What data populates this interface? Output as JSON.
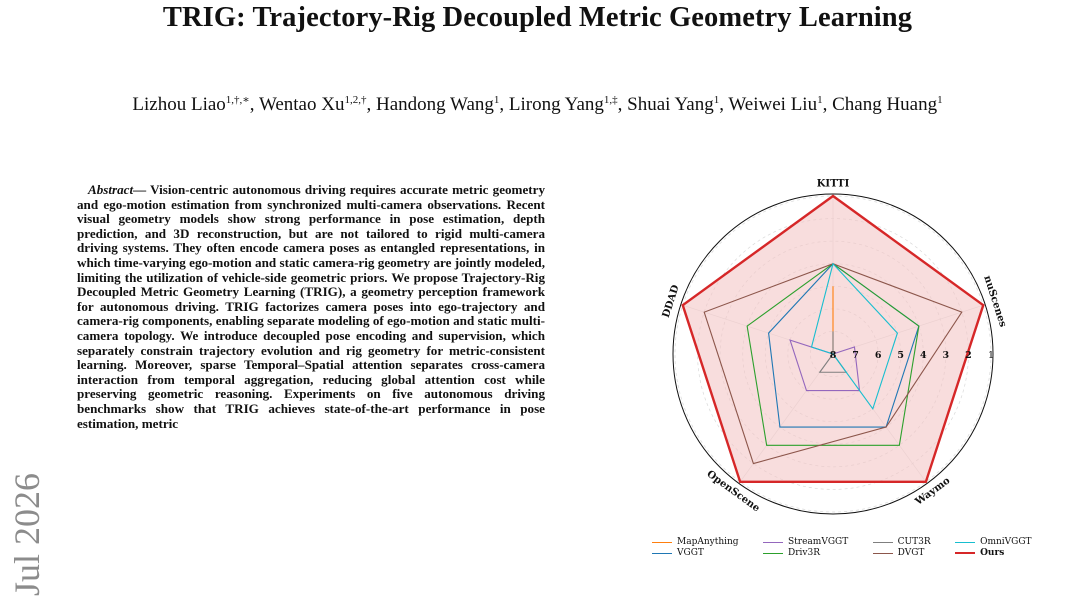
{
  "paper": {
    "title": "TRIG: Trajectory-Rig Decoupled Metric Geometry Learning",
    "authors": [
      {
        "name": "Lizhou Liao",
        "sup": "1,†,∗",
        "sep": ", "
      },
      {
        "name": "Wentao Xu",
        "sup": "1,2,†",
        "sep": ", "
      },
      {
        "name": "Handong Wang",
        "sup": "1",
        "sep": ", "
      },
      {
        "name": "Lirong Yang",
        "sup": "1,‡",
        "sep": ", "
      },
      {
        "name": "Shuai Yang",
        "sup": "1",
        "sep": ", "
      },
      {
        "name": "Weiwei Liu",
        "sup": "1",
        "sep": ", "
      },
      {
        "name": "Chang Huang",
        "sup": "1",
        "sep": ""
      }
    ],
    "side_stamp": "Jul 2026",
    "abstract_label": "Abstract—",
    "abstract_text": "Vision-centric autonomous driving requires accurate metric geometry and ego-motion estimation from synchronized multi-camera observations. Recent visual geometry models show strong performance in pose estimation, depth prediction, and 3D reconstruction, but are not tailored to rigid multi-camera driving systems. They often encode camera poses as entangled representations, in which time-varying ego-motion and static camera-rig geometry are jointly modeled, limiting the utilization of vehicle-side geometric priors. We propose Trajectory-Rig Decoupled Metric Geometry Learning (TRIG), a geometry perception framework for autonomous driving. TRIG factorizes camera poses into ego-trajectory and camera-rig components, enabling separate modeling of ego-motion and static multi-camera topology. We introduce decoupled pose encoding and supervision, which separately constrain trajectory evolution and rig geometry for metric-consistent learning. Moreover, sparse Temporal–Spatial attention separates cross-camera interaction from temporal aggregation, reducing global attention cost while preserving geometric reasoning. Experiments on five autonomous driving benchmarks show that TRIG achieves state-of-the-art performance in pose estimation, metric"
  },
  "chart_data": {
    "type": "radar",
    "axes": [
      "KITTI",
      "nuScenes",
      "Waymo",
      "OpenScene",
      "DDAD"
    ],
    "rank_ticks": [
      "1",
      "2",
      "3",
      "4",
      "5",
      "6",
      "7",
      "8"
    ],
    "rank_range": [
      1,
      8
    ],
    "grid": true,
    "legend_position": "bottom",
    "series": [
      {
        "name": "MapAnything",
        "color": "#ff7f0e",
        "ranks": [
          5,
          8,
          8,
          8,
          8
        ]
      },
      {
        "name": "VGGT",
        "color": "#1f77b4",
        "ranks": [
          4,
          4,
          4,
          4,
          5
        ]
      },
      {
        "name": "StreamVGGT",
        "color": "#9467bd",
        "ranks": [
          8,
          7,
          6,
          6,
          6
        ]
      },
      {
        "name": "Driv3R",
        "color": "#2ca02c",
        "ranks": [
          4,
          4,
          3,
          3,
          4
        ]
      },
      {
        "name": "CUT3R",
        "color": "#7f7f7f",
        "ranks": [
          7,
          8,
          7,
          7,
          8
        ]
      },
      {
        "name": "DVGT",
        "color": "#8c564b",
        "ranks": [
          4,
          2,
          4,
          2,
          2
        ]
      },
      {
        "name": "OmniVGGT",
        "color": "#17becf",
        "ranks": [
          4,
          5,
          5,
          8,
          7
        ]
      },
      {
        "name": "Ours",
        "color": "#d62728",
        "ranks": [
          1,
          1,
          1,
          1,
          1
        ],
        "bold": true,
        "fill": "#f4c7c7"
      }
    ]
  }
}
